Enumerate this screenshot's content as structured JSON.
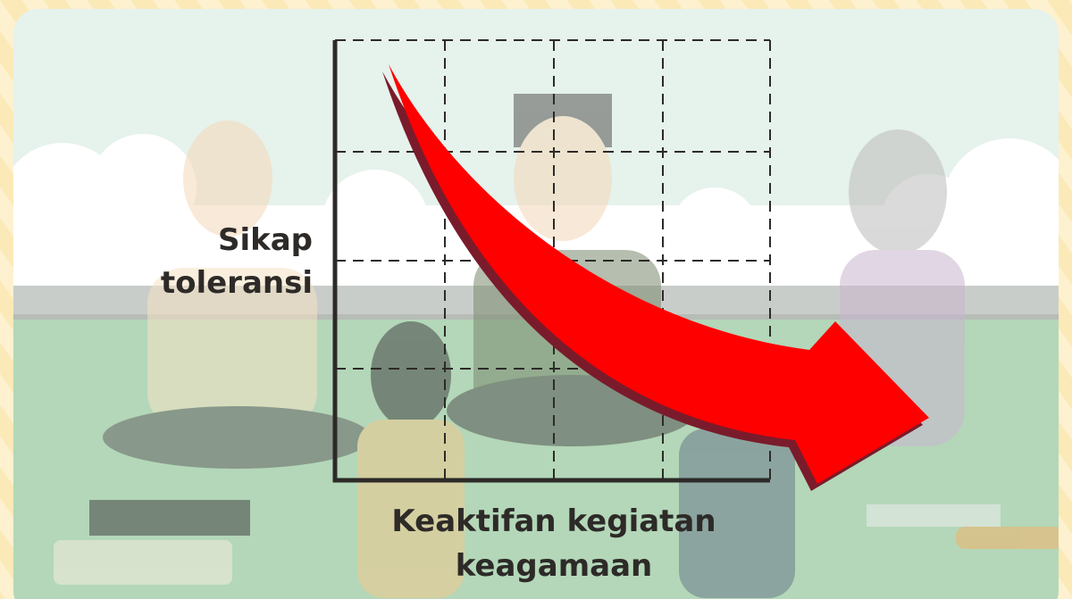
{
  "axes": {
    "y_label": [
      "Sikap",
      "toleransi"
    ],
    "x_label": [
      "Keaktifan kegiatan",
      "keagamaan"
    ]
  }
}
